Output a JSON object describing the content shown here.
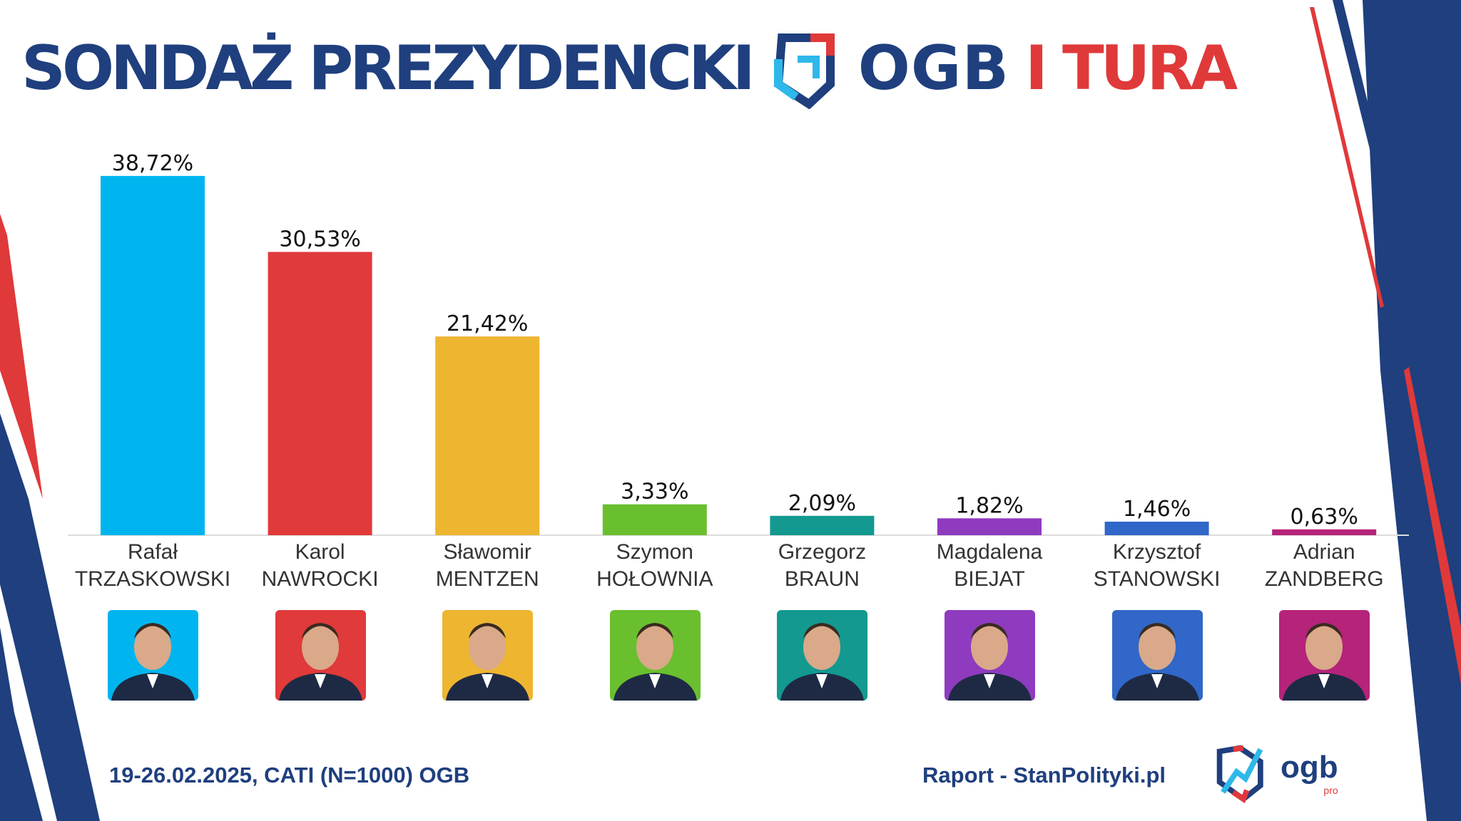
{
  "header": {
    "title": "SONDAŻ PREZYDENCKI",
    "brand": "OGB",
    "round": "I TURA"
  },
  "footer": {
    "method": "19-26.02.2025, CATI (N=1000) OGB",
    "source": "Raport - StanPolityki.pl",
    "logo_text": "ogb",
    "logo_sub": "pro"
  },
  "chart_data": {
    "type": "bar",
    "title": "SONDAŻ PREZYDENCKI OGB I TURA",
    "unit": "%",
    "ylim": [
      0,
      40
    ],
    "grid": false,
    "categories": [
      {
        "first": "Rafał",
        "last": "TRZASKOWSKI"
      },
      {
        "first": "Karol",
        "last": "NAWROCKI"
      },
      {
        "first": "Sławomir",
        "last": "MENTZEN"
      },
      {
        "first": "Szymon",
        "last": "HOŁOWNIA"
      },
      {
        "first": "Grzegorz",
        "last": "BRAUN"
      },
      {
        "first": "Magdalena",
        "last": "BIEJAT"
      },
      {
        "first": "Krzysztof",
        "last": "STANOWSKI"
      },
      {
        "first": "Adrian",
        "last": "ZANDBERG"
      }
    ],
    "values": [
      38.72,
      30.53,
      21.42,
      3.33,
      2.09,
      1.82,
      1.46,
      0.63
    ],
    "labels": [
      "38,72%",
      "30,53%",
      "21,42%",
      "3,33%",
      "2,09%",
      "1,82%",
      "1,46%",
      "0,63%"
    ],
    "colors": [
      "#00b5ef",
      "#e03a3a",
      "#eeb531",
      "#6abf2e",
      "#13998f",
      "#8e3bbf",
      "#3067c8",
      "#b5237a"
    ]
  }
}
